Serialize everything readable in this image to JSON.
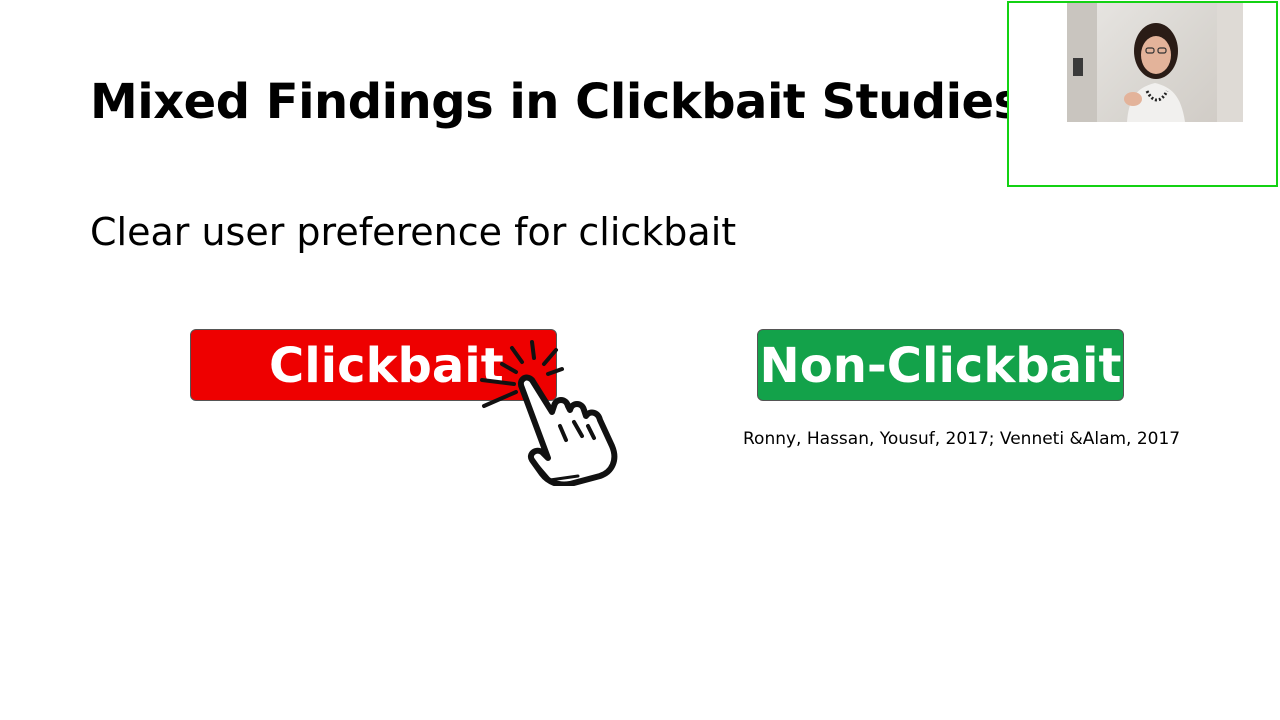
{
  "slide": {
    "title": "Mixed Findings in Clickbait Studies",
    "subtitle": "Clear user preference for clickbait",
    "clickbait_label": "Clickbait",
    "nonclickbait_label": "Non-Clickbait",
    "citation": "Ronny, Hassan, Yousuf, 2017; Venneti &Alam, 2017"
  },
  "colors": {
    "clickbait": "#ee0000",
    "nonclickbait": "#13a24a",
    "webcam_border": "#13d213"
  },
  "icons": {
    "cursor": "pointing-hand-click-icon"
  }
}
